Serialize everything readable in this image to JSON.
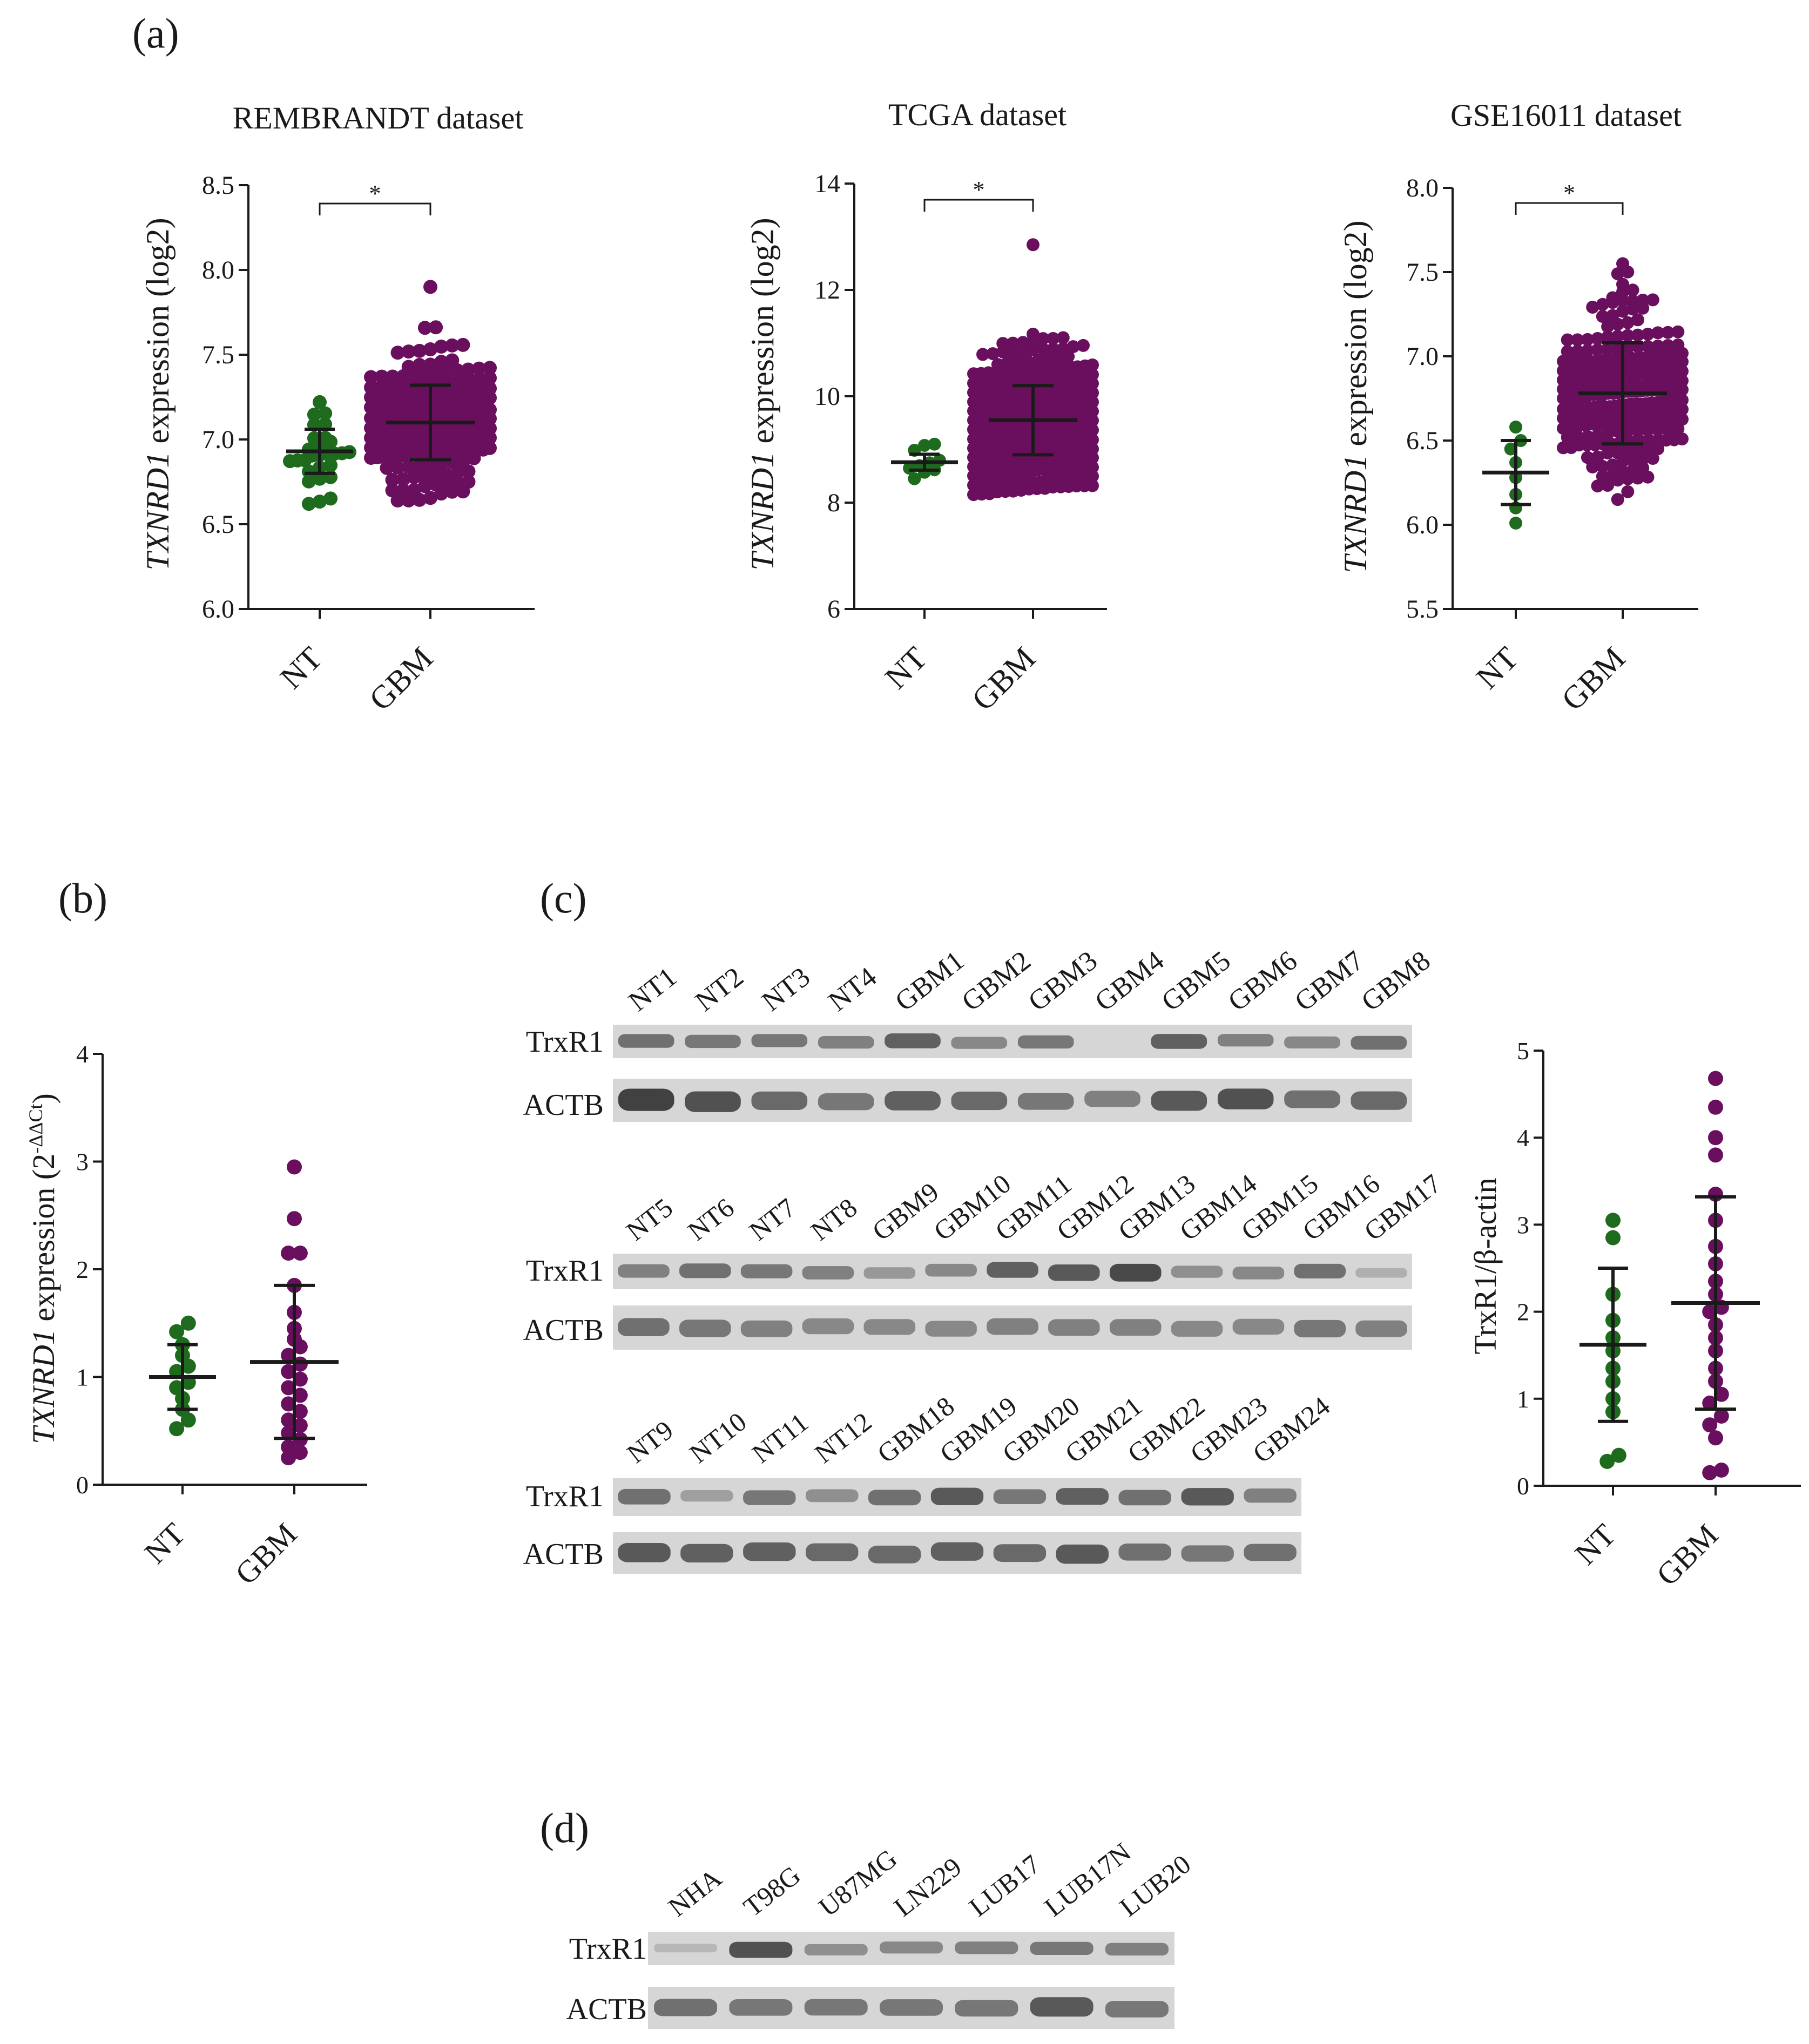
{
  "colors": {
    "nt": "#1e6b1e",
    "gbm": "#6a0f5e",
    "ink": "#1a1a1a"
  },
  "panel_labels": {
    "a": "(a)",
    "b": "(b)",
    "c": "(c)",
    "d": "(d)"
  },
  "common": {
    "gene_italic": "TXNRD1",
    "ylabel_log2_suffix": " expression (log2)",
    "ylabel_ddct_suffix": " expression (2",
    "ddct_super": "-ΔΔCt",
    "ddct_close": ")",
    "sig_star": "*"
  },
  "chart_data": [
    {
      "id": "a1",
      "type": "scatter",
      "title": "REMBRANDT dataset",
      "xlabel": "",
      "ylabel": "TXNRD1 expression (log2)",
      "categories": [
        "NT",
        "GBM"
      ],
      "ylim": [
        6.0,
        8.5
      ],
      "yticks": [
        "6.0",
        "6.5",
        "7.0",
        "7.5",
        "8.0",
        "8.5"
      ],
      "significance": "*",
      "series": [
        {
          "name": "NT",
          "n": 28,
          "mean": 6.93,
          "sd": 0.13,
          "min": 6.62,
          "max": 7.22
        },
        {
          "name": "GBM",
          "n": 220,
          "mean": 7.1,
          "sd": 0.22,
          "min": 6.64,
          "max": 7.9
        }
      ]
    },
    {
      "id": "a2",
      "type": "scatter",
      "title": "TCGA dataset",
      "xlabel": "",
      "ylabel": "TXNRD1 expression (log2)",
      "categories": [
        "NT",
        "GBM"
      ],
      "ylim": [
        6,
        14
      ],
      "yticks": [
        "6",
        "8",
        "10",
        "12",
        "14"
      ],
      "significance": "*",
      "series": [
        {
          "name": "NT",
          "n": 10,
          "mean": 8.76,
          "sd": 0.15,
          "min": 8.45,
          "max": 9.1
        },
        {
          "name": "GBM",
          "n": 520,
          "mean": 9.55,
          "sd": 0.65,
          "min": 8.15,
          "max": 12.85
        }
      ]
    },
    {
      "id": "a3",
      "type": "scatter",
      "title": "GSE16011 dataset",
      "xlabel": "",
      "ylabel": "TXNRD1 expression (log2)",
      "categories": [
        "NT",
        "GBM"
      ],
      "ylim": [
        5.5,
        8.0
      ],
      "yticks": [
        "5.5",
        "6.0",
        "6.5",
        "7.0",
        "7.5",
        "8.0"
      ],
      "significance": "*",
      "series": [
        {
          "name": "NT",
          "n": 8,
          "mean": 6.31,
          "sd": 0.19,
          "values": [
            6.58,
            6.5,
            6.45,
            6.37,
            6.28,
            6.18,
            6.1,
            6.01
          ]
        },
        {
          "name": "GBM",
          "n": 260,
          "mean": 6.78,
          "sd": 0.3,
          "min": 6.15,
          "max": 7.55
        }
      ]
    },
    {
      "id": "b",
      "type": "scatter",
      "title": "",
      "xlabel": "",
      "ylabel": "TXNRD1 expression (2-ΔΔCt)",
      "categories": [
        "NT",
        "GBM"
      ],
      "ylim": [
        0,
        4
      ],
      "yticks": [
        "0",
        "1",
        "2",
        "3",
        "4"
      ],
      "significance": "",
      "series": [
        {
          "name": "NT",
          "n": 12,
          "mean": 1.0,
          "sd": 0.3,
          "values": [
            1.5,
            1.42,
            1.3,
            1.2,
            1.1,
            1.05,
            0.95,
            0.9,
            0.8,
            0.7,
            0.6,
            0.52
          ]
        },
        {
          "name": "GBM",
          "n": 24,
          "mean": 1.14,
          "sd": 0.71,
          "values": [
            2.95,
            2.47,
            2.15,
            2.15,
            1.85,
            1.6,
            1.45,
            1.35,
            1.28,
            1.2,
            1.12,
            1.05,
            0.98,
            0.9,
            0.83,
            0.75,
            0.68,
            0.6,
            0.55,
            0.48,
            0.42,
            0.35,
            0.3,
            0.25
          ]
        }
      ]
    },
    {
      "id": "c",
      "type": "scatter",
      "title": "",
      "xlabel": "",
      "ylabel": "TrxR1/β-actin",
      "categories": [
        "NT",
        "GBM"
      ],
      "ylim": [
        0,
        5
      ],
      "yticks": [
        "0",
        "1",
        "2",
        "3",
        "4",
        "5"
      ],
      "significance": "",
      "series": [
        {
          "name": "NT",
          "n": 12,
          "mean": 1.62,
          "sd": 0.88,
          "values": [
            3.05,
            2.85,
            2.2,
            1.9,
            1.7,
            1.55,
            1.35,
            1.2,
            1.0,
            0.85,
            0.35,
            0.28
          ]
        },
        {
          "name": "GBM",
          "n": 24,
          "mean": 2.1,
          "sd": 1.22,
          "values": [
            4.68,
            4.35,
            4.0,
            3.8,
            3.35,
            3.05,
            2.75,
            2.55,
            2.35,
            2.2,
            2.05,
            2.0,
            1.85,
            1.7,
            1.55,
            1.35,
            1.2,
            1.05,
            0.95,
            0.8,
            0.7,
            0.55,
            0.18,
            0.15
          ]
        }
      ]
    }
  ],
  "blots": [
    {
      "id": "c1",
      "lanes": [
        "NT1",
        "NT2",
        "NT3",
        "NT4",
        "GBM1",
        "GBM2",
        "GBM3",
        "GBM4",
        "GBM5",
        "GBM6",
        "GBM7",
        "GBM8"
      ],
      "rows": [
        {
          "label": "TrxR1",
          "intensity": [
            0.6,
            0.55,
            0.55,
            0.5,
            0.7,
            0.45,
            0.55,
            0.0,
            0.7,
            0.5,
            0.45,
            0.6
          ]
        },
        {
          "label": "ACTB",
          "intensity": [
            0.9,
            0.8,
            0.65,
            0.55,
            0.7,
            0.65,
            0.55,
            0.5,
            0.75,
            0.8,
            0.6,
            0.65
          ]
        }
      ]
    },
    {
      "id": "c2",
      "lanes": [
        "NT5",
        "NT6",
        "NT7",
        "NT8",
        "GBM9",
        "GBM10",
        "GBM11",
        "GBM12",
        "GBM13",
        "GBM14",
        "GBM15",
        "GBM16",
        "GBM17"
      ],
      "rows": [
        {
          "label": "TrxR1",
          "intensity": [
            0.5,
            0.6,
            0.55,
            0.5,
            0.35,
            0.45,
            0.7,
            0.75,
            0.85,
            0.4,
            0.45,
            0.6,
            0.2
          ]
        },
        {
          "label": "ACTB",
          "intensity": [
            0.6,
            0.55,
            0.5,
            0.45,
            0.45,
            0.45,
            0.5,
            0.5,
            0.5,
            0.45,
            0.45,
            0.55,
            0.5
          ]
        }
      ]
    },
    {
      "id": "c3",
      "lanes": [
        "NT9",
        "NT10",
        "NT11",
        "NT12",
        "GBM18",
        "GBM19",
        "GBM20",
        "GBM21",
        "GBM22",
        "GBM23",
        "GBM24"
      ],
      "rows": [
        {
          "label": "TrxR1",
          "intensity": [
            0.6,
            0.3,
            0.55,
            0.4,
            0.6,
            0.75,
            0.55,
            0.7,
            0.6,
            0.75,
            0.5
          ]
        },
        {
          "label": "ACTB",
          "intensity": [
            0.75,
            0.7,
            0.7,
            0.65,
            0.65,
            0.7,
            0.65,
            0.75,
            0.6,
            0.55,
            0.6
          ]
        }
      ]
    },
    {
      "id": "d",
      "lanes": [
        "NHA",
        "T98G",
        "U87MG",
        "LN229",
        "LUB17",
        "LUB17N",
        "LUB20"
      ],
      "rows": [
        {
          "label": "TrxR1",
          "intensity": [
            0.15,
            0.8,
            0.4,
            0.45,
            0.5,
            0.55,
            0.5
          ]
        },
        {
          "label": "ACTB",
          "intensity": [
            0.6,
            0.55,
            0.55,
            0.55,
            0.55,
            0.75,
            0.55
          ]
        }
      ]
    }
  ]
}
